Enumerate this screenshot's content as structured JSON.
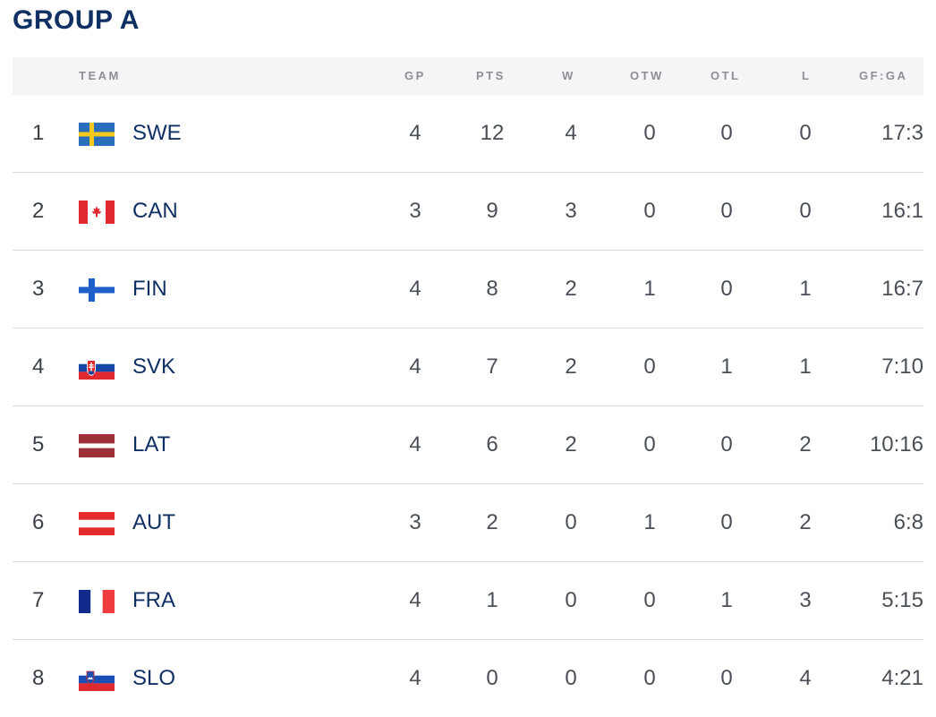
{
  "title": "GROUP A",
  "headers": {
    "team": "TEAM",
    "gp": "GP",
    "pts": "PTS",
    "w": "W",
    "otw": "OTW",
    "otl": "OTL",
    "l": "L",
    "gfga": "GF:GA"
  },
  "rows": [
    {
      "rank": "1",
      "team": "SWE",
      "flag": "sweden-flag-icon",
      "gp": "4",
      "pts": "12",
      "w": "4",
      "otw": "0",
      "otl": "0",
      "l": "0",
      "gfga": "17:3"
    },
    {
      "rank": "2",
      "team": "CAN",
      "flag": "canada-flag-icon",
      "gp": "3",
      "pts": "9",
      "w": "3",
      "otw": "0",
      "otl": "0",
      "l": "0",
      "gfga": "16:1"
    },
    {
      "rank": "3",
      "team": "FIN",
      "flag": "finland-flag-icon",
      "gp": "4",
      "pts": "8",
      "w": "2",
      "otw": "1",
      "otl": "0",
      "l": "1",
      "gfga": "16:7"
    },
    {
      "rank": "4",
      "team": "SVK",
      "flag": "slovakia-flag-icon",
      "gp": "4",
      "pts": "7",
      "w": "2",
      "otw": "0",
      "otl": "1",
      "l": "1",
      "gfga": "7:10"
    },
    {
      "rank": "5",
      "team": "LAT",
      "flag": "latvia-flag-icon",
      "gp": "4",
      "pts": "6",
      "w": "2",
      "otw": "0",
      "otl": "0",
      "l": "2",
      "gfga": "10:16"
    },
    {
      "rank": "6",
      "team": "AUT",
      "flag": "austria-flag-icon",
      "gp": "3",
      "pts": "2",
      "w": "0",
      "otw": "1",
      "otl": "0",
      "l": "2",
      "gfga": "6:8"
    },
    {
      "rank": "7",
      "team": "FRA",
      "flag": "france-flag-icon",
      "gp": "4",
      "pts": "1",
      "w": "0",
      "otw": "0",
      "otl": "1",
      "l": "3",
      "gfga": "5:15"
    },
    {
      "rank": "8",
      "team": "SLO",
      "flag": "slovenia-flag-icon",
      "gp": "4",
      "pts": "0",
      "w": "0",
      "otw": "0",
      "otl": "0",
      "l": "4",
      "gfga": "4:21"
    }
  ],
  "colors": {
    "title": "#102f63",
    "team_text": "#102f63",
    "header_bg": "#f4f5f7",
    "header_text": "#8c8f96"
  }
}
